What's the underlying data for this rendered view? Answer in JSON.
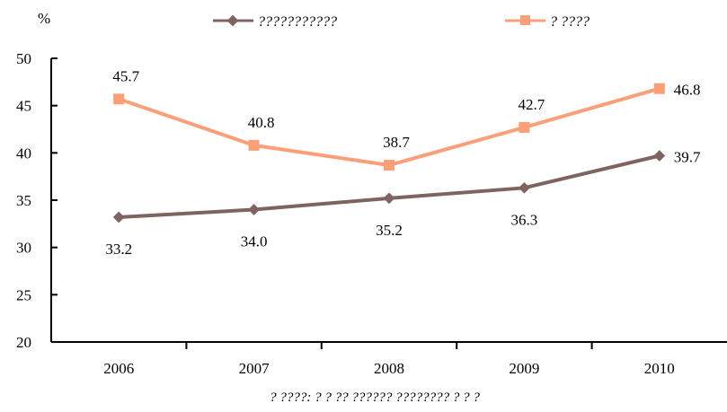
{
  "chart_data": {
    "type": "line",
    "x": [
      "2006",
      "2007",
      "2008",
      "2009",
      "2010"
    ],
    "series": [
      {
        "name": "???????????",
        "values": [
          33.2,
          34.0,
          35.2,
          36.3,
          39.7
        ],
        "color": "#7f6360",
        "marker": "diamond"
      },
      {
        "name": "? ????",
        "values": [
          45.7,
          40.8,
          38.7,
          42.7,
          46.8
        ],
        "color": "#fb9f78",
        "marker": "square"
      }
    ],
    "ylabel": "%",
    "ylim": [
      20,
      50
    ],
    "yticks": [
      20,
      25,
      30,
      35,
      40,
      45,
      50
    ],
    "grid": false,
    "legend": "top",
    "source_note": "? ????: ?  ?  ?? ??????  ???????? ? ? ?"
  }
}
